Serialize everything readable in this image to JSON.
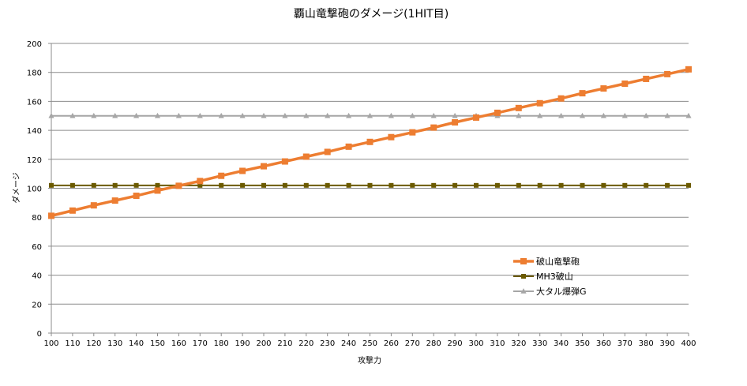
{
  "chart_data": {
    "type": "line",
    "title": "覇山竜撃砲のダメージ(1HIT目)",
    "xlabel": "攻撃力",
    "ylabel": "ダメージ",
    "ylim": [
      0,
      200
    ],
    "yticks": [
      0,
      20,
      40,
      60,
      80,
      100,
      120,
      140,
      160,
      180,
      200
    ],
    "x": [
      100,
      110,
      120,
      130,
      140,
      150,
      160,
      170,
      180,
      190,
      200,
      210,
      220,
      230,
      240,
      250,
      260,
      270,
      280,
      290,
      300,
      310,
      320,
      330,
      340,
      350,
      360,
      370,
      380,
      390,
      400
    ],
    "grid": "horizontal",
    "legend_position": "right",
    "series": [
      {
        "name": "破山竜撃砲",
        "color": "#ED7D31",
        "marker": "square",
        "values": [
          81,
          84.6,
          88.2,
          91.5,
          94.8,
          98.4,
          101.7,
          105,
          108.6,
          112,
          115.2,
          118.5,
          121.8,
          125.1,
          128.7,
          132,
          135.3,
          138.6,
          141.9,
          145.5,
          148.8,
          152.1,
          155.4,
          158.7,
          162,
          165.6,
          168.9,
          172.2,
          175.5,
          178.8,
          182.1
        ]
      },
      {
        "name": "MH3破山",
        "color": "#6B5A00",
        "marker": "square",
        "values": [
          102,
          102,
          102,
          102,
          102,
          102,
          102,
          102,
          102,
          102,
          102,
          102,
          102,
          102,
          102,
          102,
          102,
          102,
          102,
          102,
          102,
          102,
          102,
          102,
          102,
          102,
          102,
          102,
          102,
          102,
          102
        ]
      },
      {
        "name": "大タル爆弾G",
        "color": "#A6A6A6",
        "marker": "triangle",
        "values": [
          150,
          150,
          150,
          150,
          150,
          150,
          150,
          150,
          150,
          150,
          150,
          150,
          150,
          150,
          150,
          150,
          150,
          150,
          150,
          150,
          150,
          150,
          150,
          150,
          150,
          150,
          150,
          150,
          150,
          150,
          150
        ]
      }
    ]
  }
}
